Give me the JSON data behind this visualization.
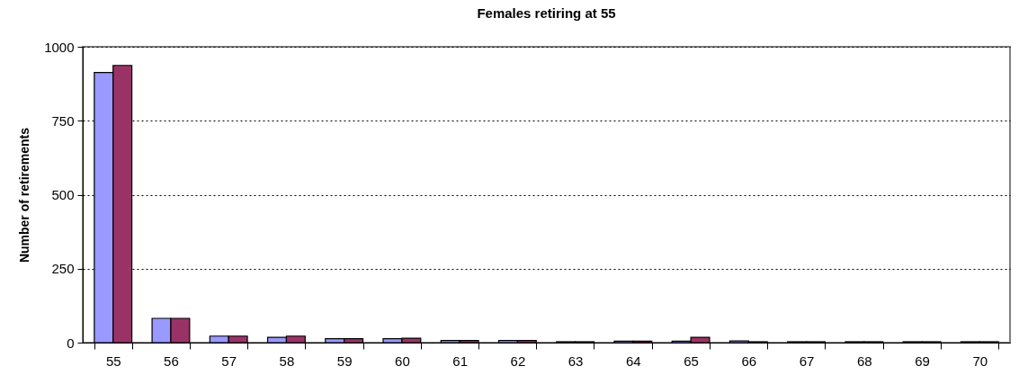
{
  "chart_data": {
    "type": "bar",
    "title": "Females retiring at 55",
    "ylabel": "Number of retirements",
    "categories": [
      "55",
      "56",
      "57",
      "58",
      "59",
      "60",
      "61",
      "62",
      "63",
      "64",
      "65",
      "66",
      "67",
      "68",
      "69",
      "70"
    ],
    "series": [
      {
        "color": "#9999ff",
        "values": [
          913,
          82,
          22,
          18,
          13,
          13,
          7,
          7,
          3,
          5,
          5,
          6,
          3,
          3,
          3,
          3
        ]
      },
      {
        "color": "#993366",
        "values": [
          937,
          82,
          22,
          22,
          13,
          15,
          7,
          7,
          3,
          5,
          18,
          3,
          3,
          3,
          3,
          3
        ]
      }
    ],
    "ylim": [
      0,
      1000
    ],
    "yticks": [
      0,
      250,
      500,
      750,
      1000
    ],
    "grid": "y"
  }
}
